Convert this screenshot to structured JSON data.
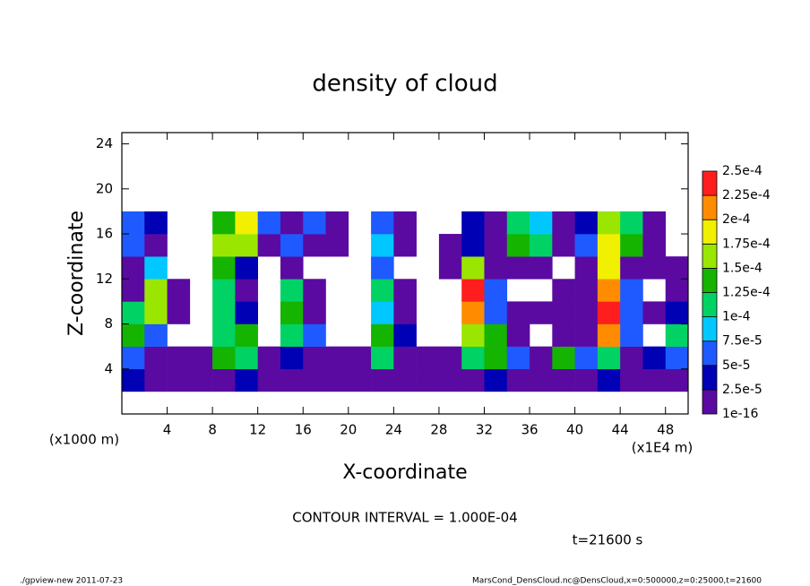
{
  "chart_data": {
    "type": "heatmap",
    "title": "density of cloud",
    "xlabel": "X-coordinate",
    "ylabel": "Z-coordinate",
    "xunit": "(x1E4 m)",
    "yunit": "(x1000 m)",
    "note": "CONTOUR INTERVAL = 1.000E-04",
    "time": "t=21600 s",
    "footer_left": "./gpview-new  2011-07-23",
    "footer_right": "MarsCond_DensCloud.nc@DensCloud,x=0:500000,z=0:25000,t=21600",
    "xlim": [
      0,
      50
    ],
    "xticks": [
      4,
      8,
      12,
      16,
      20,
      24,
      28,
      32,
      36,
      40,
      44,
      48
    ],
    "ylim": [
      0,
      25
    ],
    "yticks": [
      4,
      8,
      12,
      16,
      20,
      24
    ],
    "xbins": [
      0,
      2,
      4,
      6,
      8,
      10,
      12,
      14,
      16,
      18,
      20,
      22,
      24,
      26,
      28,
      30,
      32,
      34,
      36,
      38,
      40,
      42,
      44,
      46,
      48,
      50
    ],
    "ybins": [
      2,
      4,
      6,
      8,
      10,
      12,
      14,
      16,
      18
    ],
    "levels": [
      {
        "value": 1e-16,
        "label": "1e-16"
      },
      {
        "value": 2.5e-05,
        "label": "2.5e-5"
      },
      {
        "value": 5e-05,
        "label": "5e-5"
      },
      {
        "value": 7.5e-05,
        "label": "7.5e-5"
      },
      {
        "value": 0.0001,
        "label": "1e-4"
      },
      {
        "value": 0.000125,
        "label": "1.25e-4"
      },
      {
        "value": 0.00015,
        "label": "1.5e-4"
      },
      {
        "value": 0.000175,
        "label": "1.75e-4"
      },
      {
        "value": 0.0002,
        "label": "2e-4"
      },
      {
        "value": 0.000225,
        "label": "2.25e-4"
      },
      {
        "value": 0.00025,
        "label": "2.5e-4"
      }
    ],
    "colors": [
      "#5a0aa0",
      "#0000b4",
      "#1e5aff",
      "#00c8ff",
      "#00d264",
      "#14b400",
      "#9be600",
      "#f0f000",
      "#ff8c00",
      "#ff1e1e"
    ],
    "values": [
      [
        3e-05,
        1e-05,
        1e-05,
        1e-05,
        1e-05,
        3e-05,
        1e-05,
        1e-05,
        1e-05,
        1e-05,
        1e-05,
        1e-05,
        1e-05,
        1e-05,
        1e-05,
        1e-05,
        3e-05,
        1e-05,
        1e-05,
        1e-05,
        1e-05,
        3e-05,
        1e-05,
        1e-05,
        1e-05
      ],
      [
        6e-05,
        1e-05,
        1e-05,
        1e-05,
        0.00013,
        0.00011,
        1e-05,
        3e-05,
        1e-05,
        1e-05,
        1e-05,
        0.00011,
        1e-05,
        1e-05,
        1e-05,
        0.00011,
        0.00013,
        6e-05,
        1e-05,
        0.00013,
        6e-05,
        0.00011,
        1e-05,
        3e-05,
        6e-05
      ],
      [
        0.00013,
        6e-05,
        null,
        null,
        0.00011,
        0.00013,
        null,
        0.00011,
        6e-05,
        null,
        null,
        0.00013,
        3e-05,
        null,
        null,
        0.00016,
        0.00013,
        1e-05,
        null,
        1e-05,
        1e-05,
        0.00021,
        6e-05,
        null,
        0.00011
      ],
      [
        0.00011,
        0.00016,
        1e-05,
        null,
        0.00011,
        3e-05,
        null,
        0.00013,
        1e-05,
        null,
        null,
        8e-05,
        1e-05,
        null,
        null,
        0.00021,
        6e-05,
        1e-05,
        1e-05,
        1e-05,
        1e-05,
        0.00023,
        6e-05,
        1e-05,
        3e-05
      ],
      [
        1e-05,
        0.00016,
        1e-05,
        null,
        0.00011,
        1e-05,
        null,
        0.00011,
        1e-05,
        null,
        null,
        0.00011,
        1e-05,
        null,
        null,
        0.00023,
        6e-05,
        null,
        null,
        1e-05,
        1e-05,
        0.00021,
        6e-05,
        null,
        1e-05
      ],
      [
        1e-05,
        8e-05,
        null,
        null,
        0.00013,
        3e-05,
        null,
        1e-05,
        null,
        null,
        null,
        6e-05,
        null,
        null,
        1e-05,
        0.00016,
        1e-05,
        1e-05,
        1e-05,
        null,
        1e-05,
        0.00018,
        1e-05,
        1e-05,
        1e-05
      ],
      [
        6e-05,
        1e-05,
        null,
        null,
        0.00016,
        0.00016,
        1e-05,
        6e-05,
        1e-05,
        1e-05,
        null,
        8e-05,
        1e-05,
        null,
        1e-05,
        3e-05,
        1e-05,
        0.00013,
        0.00011,
        1e-05,
        6e-05,
        0.00018,
        0.00013,
        1e-05,
        null
      ],
      [
        6e-05,
        3e-05,
        null,
        null,
        0.00013,
        0.00018,
        6e-05,
        1e-05,
        6e-05,
        1e-05,
        null,
        6e-05,
        1e-05,
        null,
        null,
        3e-05,
        1e-05,
        0.00011,
        8e-05,
        1e-05,
        3e-05,
        0.00016,
        0.00011,
        1e-05,
        null
      ]
    ]
  }
}
